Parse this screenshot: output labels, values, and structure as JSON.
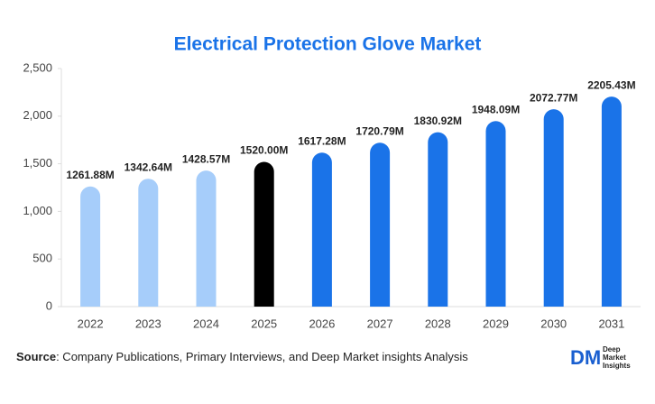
{
  "chart_data": {
    "type": "bar",
    "title": "Electrical Protection Glove Market",
    "categories": [
      "2022",
      "2023",
      "2024",
      "2025",
      "2026",
      "2027",
      "2028",
      "2029",
      "2030",
      "2031"
    ],
    "values": [
      1261.88,
      1342.64,
      1428.57,
      1520.0,
      1617.28,
      1720.79,
      1830.92,
      1948.09,
      2072.77,
      2205.43
    ],
    "value_labels": [
      "1261.88M",
      "1342.64M",
      "1428.57M",
      "1520.00M",
      "1617.28M",
      "1720.79M",
      "1830.92M",
      "1948.09M",
      "2072.77M",
      "2205.43M"
    ],
    "colors": [
      "#a6cdfa",
      "#a6cdfa",
      "#a6cdfa",
      "#000000",
      "#1a73e8",
      "#1a73e8",
      "#1a73e8",
      "#1a73e8",
      "#1a73e8",
      "#1a73e8"
    ],
    "ylim": [
      0,
      2500
    ],
    "yticks": [
      0,
      500,
      {
        "value": 1000,
        "label": "1,000"
      },
      {
        "value": 1500,
        "label": "1,500"
      },
      {
        "value": 2000,
        "label": "2,000"
      },
      {
        "value": 2500,
        "label": "2,500"
      }
    ],
    "grid": false
  },
  "source": {
    "label": "Source",
    "text": ": Company Publications, Primary Interviews, and Deep Market insights Analysis"
  },
  "logo": {
    "mark": "DM",
    "line1": "Deep",
    "line2": "Market",
    "line3": "Insights"
  }
}
